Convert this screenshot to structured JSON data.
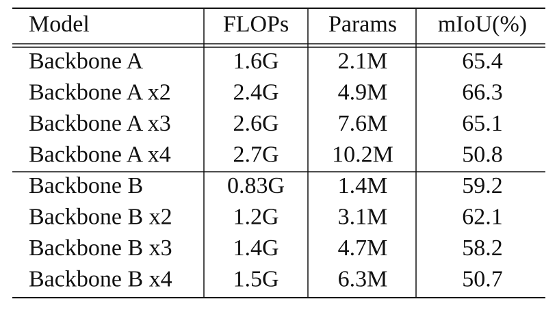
{
  "table": {
    "header": [
      "Model",
      "FLOPs",
      "Params",
      "mIoU(%)"
    ],
    "groups": [
      {
        "rows": [
          [
            "Backbone A",
            "1.6G",
            "2.1M",
            65.4
          ],
          [
            "Backbone A x2",
            "2.4G",
            "4.9M",
            66.3
          ],
          [
            "Backbone A x3",
            "2.6G",
            "7.6M",
            65.1
          ],
          [
            "Backbone A x4",
            "2.7G",
            "10.2M",
            50.8
          ]
        ]
      },
      {
        "rows": [
          [
            "Backbone B",
            "0.83G",
            "1.4M",
            59.2
          ],
          [
            "Backbone B x2",
            "1.2G",
            "3.1M",
            62.1
          ],
          [
            "Backbone B x3",
            "1.4G",
            "4.7M",
            58.2
          ],
          [
            "Backbone B x4",
            "1.5G",
            "6.3M",
            50.7
          ]
        ]
      }
    ]
  }
}
